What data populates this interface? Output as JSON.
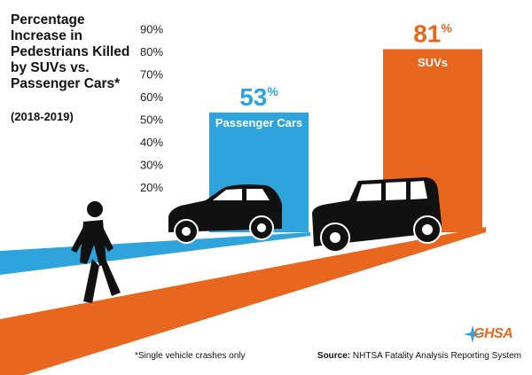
{
  "chart_data": {
    "type": "bar",
    "title": "Percentage Increase in Pedestrians Killed by SUVs vs. Passenger Cars*",
    "subtitle": "(2018-2019)",
    "categories": [
      "Passenger Cars",
      "SUVs"
    ],
    "values": [
      53,
      81
    ],
    "value_labels": [
      "53",
      "81"
    ],
    "value_suffix": "%",
    "ylim": [
      0,
      90
    ],
    "yticks": [
      20,
      30,
      40,
      50,
      60,
      70,
      80,
      90
    ],
    "ytick_labels": [
      "20%",
      "30%",
      "40%",
      "50%",
      "60%",
      "70%",
      "80%",
      "90%"
    ],
    "colors": [
      "#2ea3dc",
      "#e8661d"
    ],
    "grid": false,
    "legend": "none"
  },
  "footnote": "*Single vehicle crashes only",
  "source": {
    "label": "Source:",
    "text": "NHTSA Fatality Analysis Reporting System"
  },
  "logo": {
    "text": "GHSA",
    "icon": "ghsa-star-icon",
    "color": "#e46b20"
  },
  "illustration": {
    "icons": [
      "pedestrian-icon",
      "passenger-car-icon",
      "suv-icon"
    ],
    "road_colors": [
      "#2ea3dc",
      "#e8661d"
    ]
  }
}
